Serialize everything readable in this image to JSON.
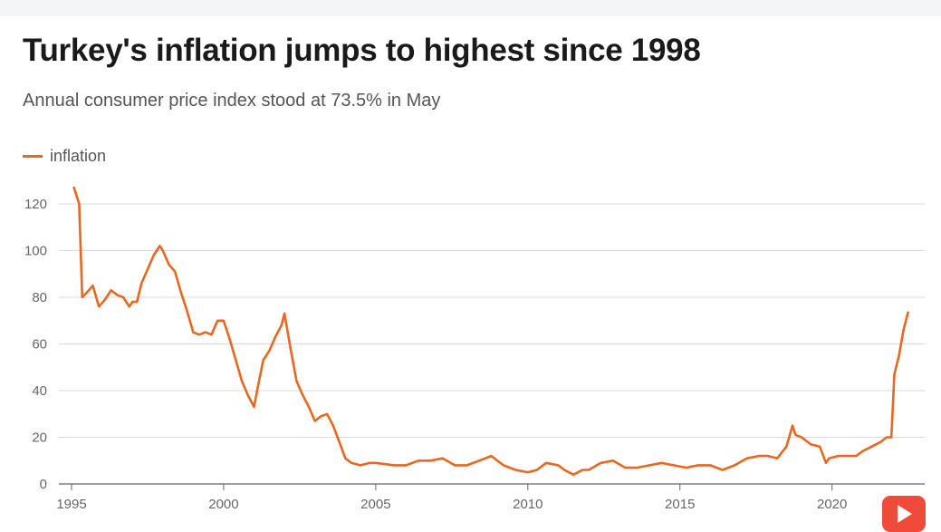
{
  "chart_data": {
    "type": "line",
    "title": "Turkey's inflation jumps to highest since 1998",
    "subtitle": "Annual consumer price index stood at 73.5% in May",
    "legend": [
      "inflation"
    ],
    "series_color": "#e8681f",
    "xlabel": "",
    "ylabel": "",
    "xlim": [
      1995,
      2022.6
    ],
    "ylim": [
      0,
      130
    ],
    "x_ticks": [
      "1995",
      "2000",
      "2005",
      "2010",
      "2015",
      "2020"
    ],
    "y_ticks": [
      "0",
      "20",
      "40",
      "60",
      "80",
      "100",
      "120"
    ],
    "series": [
      {
        "name": "inflation",
        "x": [
          1995.08,
          1995.25,
          1995.35,
          1995.5,
          1995.7,
          1995.9,
          1996.1,
          1996.3,
          1996.5,
          1996.7,
          1996.9,
          1997.0,
          1997.15,
          1997.3,
          1997.5,
          1997.7,
          1997.9,
          1998.0,
          1998.2,
          1998.4,
          1998.6,
          1998.8,
          1999.0,
          1999.2,
          1999.4,
          1999.6,
          1999.8,
          2000.0,
          2000.2,
          2000.4,
          2000.6,
          2000.8,
          2001.0,
          2001.1,
          2001.3,
          2001.5,
          2001.7,
          2001.9,
          2002.0,
          2002.2,
          2002.4,
          2002.6,
          2002.8,
          2003.0,
          2003.2,
          2003.4,
          2003.6,
          2003.8,
          2004.0,
          2004.2,
          2004.5,
          2004.8,
          2005.0,
          2005.3,
          2005.6,
          2006.0,
          2006.4,
          2006.8,
          2007.2,
          2007.6,
          2008.0,
          2008.4,
          2008.8,
          2009.2,
          2009.6,
          2010.0,
          2010.3,
          2010.6,
          2011.0,
          2011.2,
          2011.5,
          2011.8,
          2012.0,
          2012.4,
          2012.8,
          2013.2,
          2013.6,
          2014.0,
          2014.4,
          2014.8,
          2015.2,
          2015.6,
          2016.0,
          2016.4,
          2016.8,
          2017.2,
          2017.6,
          2017.9,
          2018.2,
          2018.5,
          2018.7,
          2018.8,
          2019.0,
          2019.3,
          2019.6,
          2019.8,
          2019.9,
          2020.2,
          2020.5,
          2020.8,
          2021.0,
          2021.3,
          2021.6,
          2021.8,
          2021.95,
          2022.05,
          2022.2,
          2022.35,
          2022.5
        ],
        "values": [
          127,
          120,
          80,
          82,
          85,
          76,
          79,
          83,
          81,
          80,
          76,
          78,
          78,
          86,
          92,
          98,
          102,
          100,
          94,
          91,
          82,
          74,
          65,
          64,
          65,
          64,
          70,
          70,
          62,
          53,
          44,
          38,
          33,
          40,
          53,
          57,
          63,
          68,
          73,
          58,
          44,
          38,
          33,
          27,
          29,
          30,
          25,
          18,
          11,
          9,
          8,
          9,
          9,
          8.5,
          8,
          8,
          10,
          10,
          11,
          8,
          8,
          10,
          12,
          8,
          6,
          5,
          6,
          9,
          8,
          6,
          4,
          6,
          6,
          9,
          10,
          7,
          7,
          8,
          9,
          8,
          7,
          8,
          8,
          6,
          8,
          11,
          12,
          12,
          11,
          16,
          25,
          21,
          20,
          17,
          16,
          9,
          11,
          12,
          12,
          12,
          14,
          16,
          18,
          20,
          20,
          47,
          55,
          66,
          73.5
        ]
      }
    ]
  },
  "footer": {
    "play_icon": "play-icon"
  }
}
